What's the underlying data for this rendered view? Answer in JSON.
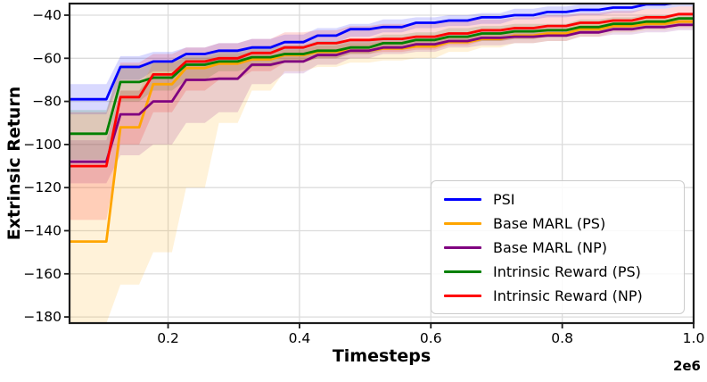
{
  "figure": {
    "background_color": "#ffffff",
    "grid_color": "#dcdcdc",
    "spine_color": "#1c1c1c",
    "tick_label_color": "#000000"
  },
  "chart_data": {
    "type": "line",
    "title": "",
    "xlabel": "Timesteps",
    "ylabel": "Extrinsic Return",
    "x_offset_text": "2e6",
    "xlim": [
      0.05,
      1.0
    ],
    "ylim": [
      -183,
      -34
    ],
    "grid": true,
    "legend_position": "lower right",
    "xticks": [
      0.2,
      0.4,
      0.6,
      0.8,
      1.0
    ],
    "xtick_labels": [
      "0.2",
      "0.4",
      "0.6",
      "0.8",
      "1.0"
    ],
    "yticks": [
      -40,
      -60,
      -80,
      -100,
      -120,
      -140,
      -160,
      -180
    ],
    "ytick_labels": [
      "−40",
      "−60",
      "−80",
      "−100",
      "−120",
      "−140",
      "−160",
      "−180"
    ],
    "x": [
      0.05,
      0.1,
      0.15,
      0.2,
      0.25,
      0.3,
      0.35,
      0.4,
      0.45,
      0.5,
      0.55,
      0.6,
      0.65,
      0.7,
      0.75,
      0.8,
      0.85,
      0.9,
      0.95,
      1.0
    ],
    "band_alpha": 0.15,
    "series": [
      {
        "name": "PSI",
        "color": "#0000ff",
        "values": [
          -79,
          -79,
          -64,
          -61.5,
          -58,
          -56.5,
          -55,
          -52.5,
          -49.5,
          -46.5,
          -45.5,
          -43.5,
          -42.5,
          -41,
          -40,
          -38.5,
          -37.5,
          -36.5,
          -35,
          -34
        ],
        "band_lower": [
          -86,
          -86,
          -70,
          -66,
          -63,
          -61,
          -58,
          -56,
          -53,
          -50,
          -48,
          -46,
          -45,
          -44,
          -42,
          -41,
          -40,
          -39,
          -37,
          -36
        ],
        "band_upper": [
          -72,
          -72,
          -59,
          -57,
          -55,
          -53,
          -51,
          -49,
          -46,
          -44,
          -42,
          -41,
          -40,
          -39,
          -37,
          -36,
          -35,
          -34,
          -33,
          -32
        ]
      },
      {
        "name": "Base MARL (PS)",
        "color": "#ffa500",
        "values": [
          -145,
          -145,
          -92,
          -72,
          -64.5,
          -62.5,
          -60.5,
          -58.5,
          -57,
          -56.5,
          -55.5,
          -54.5,
          -52.5,
          -51,
          -49.5,
          -48.5,
          -46.5,
          -45,
          -44,
          -43
        ],
        "band_lower": [
          -183,
          -183,
          -165,
          -150,
          -120,
          -90,
          -75,
          -66,
          -64,
          -62,
          -61,
          -60,
          -57,
          -55,
          -53,
          -52,
          -50,
          -48,
          -47,
          -46
        ],
        "band_upper": [
          -108,
          -108,
          -75,
          -62,
          -60,
          -58,
          -57,
          -56,
          -54,
          -53,
          -52,
          -51,
          -50,
          -48,
          -47,
          -46,
          -44,
          -43,
          -42,
          -41
        ]
      },
      {
        "name": "Base MARL (NP)",
        "color": "#800080",
        "values": [
          -108,
          -108,
          -86,
          -80,
          -70,
          -69.5,
          -63,
          -61.5,
          -58.5,
          -56.5,
          -55,
          -53.5,
          -52,
          -50.5,
          -50,
          -49.5,
          -48,
          -46.5,
          -45.5,
          -44.5
        ],
        "band_lower": [
          -118,
          -118,
          -105,
          -100,
          -90,
          -85,
          -72,
          -67,
          -63,
          -60,
          -58,
          -57,
          -55,
          -54,
          -53,
          -52,
          -50,
          -49,
          -48,
          -47
        ],
        "band_upper": [
          -98,
          -98,
          -75,
          -68,
          -62,
          -60,
          -58,
          -56,
          -54,
          -52,
          -51,
          -50,
          -48,
          -47,
          -46,
          -46,
          -45,
          -44,
          -43,
          -42
        ]
      },
      {
        "name": "Intrinsic Reward (PS)",
        "color": "#008000",
        "values": [
          -95,
          -95,
          -71,
          -69,
          -63,
          -61.5,
          -59.5,
          -58,
          -56.5,
          -55,
          -53,
          -51.5,
          -50,
          -48.5,
          -47.5,
          -47,
          -45.5,
          -44,
          -43,
          -41.5
        ],
        "band_lower": [
          -107,
          -107,
          -80,
          -75,
          -70,
          -66,
          -64,
          -62,
          -60,
          -58,
          -56,
          -55,
          -53,
          -52,
          -51,
          -50,
          -48,
          -47,
          -46,
          -44
        ],
        "band_upper": [
          -84,
          -84,
          -63,
          -62,
          -59,
          -57,
          -55,
          -54,
          -52,
          -51,
          -49,
          -48,
          -46,
          -45,
          -44,
          -44,
          -42,
          -41,
          -40,
          -39
        ]
      },
      {
        "name": "Intrinsic Reward (NP)",
        "color": "#ff0000",
        "values": [
          -110,
          -110,
          -78,
          -67.5,
          -61.5,
          -60,
          -57.5,
          -55,
          -53,
          -51.5,
          -51,
          -50,
          -48.5,
          -47,
          -46,
          -45,
          -43.5,
          -42.5,
          -41,
          -39.5
        ],
        "band_lower": [
          -135,
          -135,
          -100,
          -85,
          -75,
          -70,
          -66,
          -62,
          -60,
          -58,
          -57,
          -56,
          -54,
          -52,
          -51,
          -50,
          -48,
          -46,
          -45,
          -44
        ],
        "band_upper": [
          -85,
          -85,
          -62,
          -58,
          -55,
          -53,
          -51,
          -48,
          -47,
          -45,
          -44,
          -44,
          -42,
          -42,
          -41,
          -40,
          -39,
          -38,
          -37,
          -36
        ]
      }
    ]
  }
}
